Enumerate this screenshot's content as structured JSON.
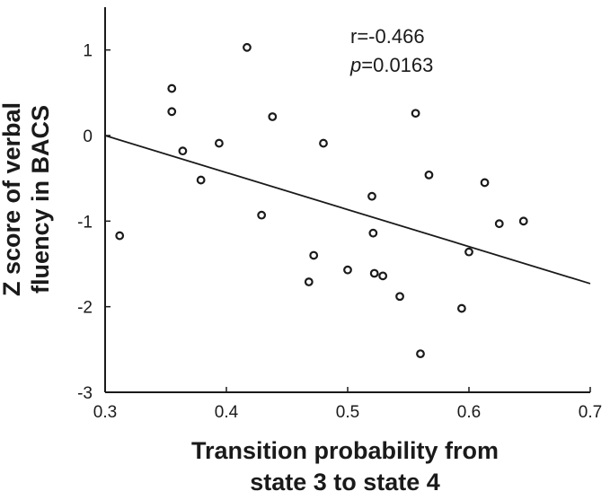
{
  "chart_data": {
    "type": "scatter",
    "title": "",
    "xlabel": [
      "Transition probability from",
      "state 3 to state 4"
    ],
    "ylabel": [
      "Z score of  verbal",
      "fluency in BACS"
    ],
    "xlim": [
      0.3,
      0.7
    ],
    "ylim": [
      -3,
      1.5
    ],
    "xticks": [
      0.3,
      0.4,
      0.5,
      0.6,
      0.7
    ],
    "xtick_labels": [
      "0.3",
      "0.4",
      "0.5",
      "0.6",
      "0.7"
    ],
    "yticks": [
      -3,
      -2,
      -1,
      0,
      1
    ],
    "ytick_labels": [
      "-3",
      "-2",
      "-1",
      "0",
      "1"
    ],
    "grid": false,
    "marker": "open-circle",
    "color": "#1a1a1a",
    "points": [
      {
        "x": 0.312,
        "y": -1.17
      },
      {
        "x": 0.355,
        "y": 0.55
      },
      {
        "x": 0.355,
        "y": 0.28
      },
      {
        "x": 0.364,
        "y": -0.18
      },
      {
        "x": 0.379,
        "y": -0.52
      },
      {
        "x": 0.394,
        "y": -0.09
      },
      {
        "x": 0.417,
        "y": 1.03
      },
      {
        "x": 0.429,
        "y": -0.93
      },
      {
        "x": 0.438,
        "y": 0.22
      },
      {
        "x": 0.468,
        "y": -1.71
      },
      {
        "x": 0.472,
        "y": -1.4
      },
      {
        "x": 0.48,
        "y": -0.09
      },
      {
        "x": 0.5,
        "y": -1.57
      },
      {
        "x": 0.52,
        "y": -0.71
      },
      {
        "x": 0.521,
        "y": -1.14
      },
      {
        "x": 0.522,
        "y": -1.61
      },
      {
        "x": 0.529,
        "y": -1.64
      },
      {
        "x": 0.543,
        "y": -1.88
      },
      {
        "x": 0.556,
        "y": 0.26
      },
      {
        "x": 0.56,
        "y": -2.55
      },
      {
        "x": 0.567,
        "y": -0.46
      },
      {
        "x": 0.594,
        "y": -2.02
      },
      {
        "x": 0.6,
        "y": -1.36
      },
      {
        "x": 0.613,
        "y": -0.55
      },
      {
        "x": 0.625,
        "y": -1.03
      },
      {
        "x": 0.645,
        "y": -1.0
      }
    ],
    "fit_line": {
      "x": [
        0.3,
        0.7
      ],
      "y": [
        0.0,
        -1.73
      ]
    },
    "annotations": {
      "r_text": "r=-0.466",
      "p_label": "p",
      "p_value": "=0.0163"
    }
  }
}
